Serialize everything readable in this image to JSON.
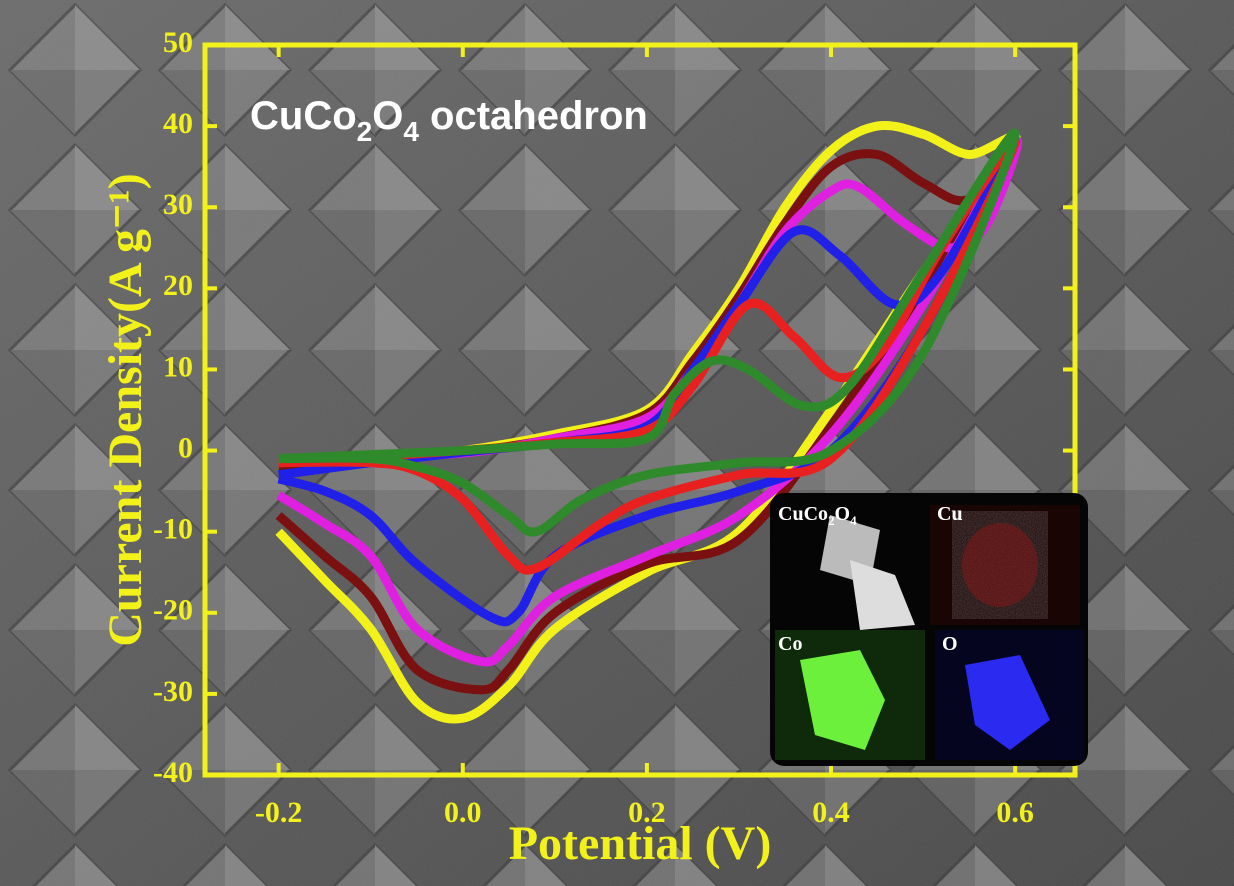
{
  "chart_data": {
    "type": "line",
    "title": "CuCo2O4 octahedron",
    "xlabel": "Potential (V)",
    "ylabel": "Current Density(A g⁻¹)",
    "xlim": [
      -0.28,
      0.665
    ],
    "ylim": [
      -40,
      50
    ],
    "xticks": [
      -0.2,
      {
        "value": 0,
        "label": "0.0"
      },
      0.2,
      0.4,
      0.6
    ],
    "yticks": [
      -40,
      -30,
      -20,
      -10,
      0,
      10,
      20,
      30,
      40,
      50
    ],
    "axis_color": "#f2f21a",
    "series": [
      {
        "color": "#f2f21a",
        "x": [
          -0.2,
          -0.1,
          0,
          0.1,
          0.2,
          0.25,
          0.3,
          0.35,
          0.4,
          0.45,
          0.5,
          0.55,
          0.6,
          0.5,
          0.4,
          0.3,
          0.2,
          0.1,
          0.05,
          0,
          -0.05,
          -0.1,
          -0.15,
          -0.2
        ],
        "values": [
          -2,
          -1,
          0,
          2,
          5,
          12,
          20,
          30,
          37,
          40,
          39,
          36.5,
          38,
          22,
          5,
          -10,
          -15,
          -22,
          -29,
          -33,
          -31,
          -22,
          -16,
          -10
        ]
      },
      {
        "color": "#7a1010",
        "x": [
          -0.2,
          -0.1,
          0,
          0.1,
          0.2,
          0.25,
          0.3,
          0.35,
          0.4,
          0.45,
          0.5,
          0.55,
          0.6,
          0.5,
          0.4,
          0.3,
          0.2,
          0.1,
          0.05,
          0.02,
          -0.05,
          -0.1,
          -0.15,
          -0.2
        ],
        "values": [
          -2,
          -1.2,
          -0.2,
          1.5,
          4.5,
          11,
          19,
          28,
          35,
          36.5,
          33,
          31,
          38,
          20,
          3,
          -11,
          -14,
          -20,
          -27,
          -29.5,
          -27,
          -18,
          -13,
          -8
        ]
      },
      {
        "color": "#e020e0",
        "x": [
          -0.2,
          0,
          0.1,
          0.2,
          0.25,
          0.3,
          0.35,
          0.4,
          0.43,
          0.48,
          0.53,
          0.57,
          0.6,
          0.5,
          0.4,
          0.3,
          0.2,
          0.1,
          0.05,
          0.02,
          -0.05,
          -0.1,
          -0.15,
          -0.2
        ],
        "values": [
          -1.5,
          -0.3,
          1.5,
          4,
          10,
          18,
          27,
          32,
          32.5,
          28,
          25,
          28,
          38,
          18,
          2,
          -8,
          -13,
          -18,
          -24,
          -26,
          -22,
          -13,
          -9,
          -5.5
        ]
      },
      {
        "color": "#2020e8",
        "x": [
          -0.2,
          -0.1,
          0,
          0.1,
          0.2,
          0.25,
          0.3,
          0.36,
          0.41,
          0.47,
          0.52,
          0.6,
          0.5,
          0.4,
          0.3,
          0.2,
          0.1,
          0.06,
          0.03,
          -0.05,
          -0.1,
          -0.15,
          -0.2
        ],
        "values": [
          -3,
          -1.5,
          -0.2,
          1,
          3,
          10,
          18,
          27,
          24,
          18,
          22,
          38,
          15,
          0,
          -5,
          -8,
          -13,
          -20,
          -20.5,
          -14,
          -8,
          -5,
          -3.5
        ]
      },
      {
        "color": "#e82020",
        "x": [
          -0.2,
          -0.1,
          0,
          0.1,
          0.2,
          0.25,
          0.31,
          0.36,
          0.41,
          0.46,
          0.52,
          0.6,
          0.5,
          0.4,
          0.3,
          0.2,
          0.15,
          0.08,
          0.05,
          0,
          -0.05,
          -0.1,
          -0.2
        ],
        "values": [
          -1.5,
          -0.8,
          0,
          1,
          2.5,
          8,
          18,
          14,
          9,
          13,
          25,
          38,
          15,
          -1,
          -3,
          -6,
          -9,
          -14.5,
          -13,
          -6,
          -2.5,
          -1.5,
          -1.5
        ]
      },
      {
        "color": "#2e8a2a",
        "x": [
          -0.2,
          -0.1,
          0,
          0.1,
          0.2,
          0.23,
          0.27,
          0.31,
          0.37,
          0.42,
          0.5,
          0.6,
          0.5,
          0.4,
          0.3,
          0.2,
          0.13,
          0.08,
          0.05,
          0,
          -0.05,
          -0.1,
          -0.2
        ],
        "values": [
          -1,
          -0.5,
          0,
          0.8,
          1.5,
          7,
          11,
          10,
          5.5,
          8,
          22,
          39,
          12,
          0,
          -1.5,
          -3,
          -6,
          -10,
          -8,
          -4,
          -2,
          -1,
          -1
        ]
      }
    ],
    "inset_labels": [
      "CuCo2O4",
      "Cu",
      "Co",
      "O"
    ]
  }
}
